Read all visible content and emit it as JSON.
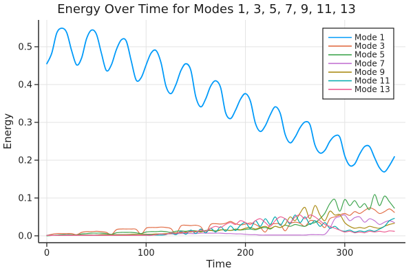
{
  "figure": {
    "background": "#ffffff",
    "grid_color": "#e3e3e3",
    "axis_color": "#2a2a2a",
    "text_color": "#1f1f1f",
    "legend": {
      "background": "#ffffff",
      "border_color": "#1a1a1a"
    }
  },
  "chart_data": {
    "type": "line",
    "title": "Energy Over Time for Modes 1, 3, 5, 7, 9, 11, 13",
    "xlabel": "Time",
    "ylabel": "Energy",
    "xlim": [
      -8.3,
      361.1
    ],
    "ylim": [
      -0.0182,
      0.5709
    ],
    "xticks": [
      0,
      100,
      200,
      300
    ],
    "xtick_labels": [
      "0",
      "100",
      "200",
      "300"
    ],
    "yticks": [
      0.0,
      0.1,
      0.2,
      0.3,
      0.4,
      0.5
    ],
    "ytick_labels": [
      "0.0",
      "0.1",
      "0.2",
      "0.3",
      "0.4",
      "0.5"
    ],
    "grid": true,
    "legend_position": "top-right",
    "x": [
      0,
      5,
      10,
      15,
      20,
      25,
      30,
      35,
      40,
      45,
      50,
      55,
      60,
      65,
      70,
      75,
      80,
      85,
      90,
      95,
      100,
      105,
      110,
      115,
      120,
      125,
      130,
      135,
      140,
      145,
      150,
      155,
      160,
      165,
      170,
      175,
      180,
      185,
      190,
      195,
      200,
      205,
      210,
      215,
      220,
      225,
      230,
      235,
      240,
      245,
      250,
      255,
      260,
      265,
      270,
      275,
      280,
      285,
      290,
      295,
      300,
      305,
      310,
      315,
      320,
      325,
      330,
      335,
      340,
      345,
      350
    ],
    "series": [
      {
        "name": "Mode 1",
        "color": "#009af9",
        "line_width": 1.8,
        "values": [
          0.455,
          0.483,
          0.536,
          0.549,
          0.538,
          0.49,
          0.452,
          0.47,
          0.521,
          0.544,
          0.533,
          0.483,
          0.437,
          0.452,
          0.492,
          0.518,
          0.515,
          0.463,
          0.412,
          0.418,
          0.452,
          0.483,
          0.49,
          0.458,
          0.396,
          0.376,
          0.4,
          0.437,
          0.455,
          0.438,
          0.368,
          0.341,
          0.362,
          0.396,
          0.41,
          0.392,
          0.326,
          0.31,
          0.332,
          0.361,
          0.376,
          0.356,
          0.298,
          0.276,
          0.291,
          0.32,
          0.341,
          0.324,
          0.268,
          0.246,
          0.261,
          0.286,
          0.301,
          0.294,
          0.24,
          0.219,
          0.226,
          0.25,
          0.264,
          0.261,
          0.212,
          0.186,
          0.19,
          0.216,
          0.236,
          0.236,
          0.207,
          0.18,
          0.169,
          0.186,
          0.209
        ]
      },
      {
        "name": "Mode 3",
        "color": "#e26e47",
        "line_width": 1.2,
        "values": [
          0.001,
          0.004,
          0.006,
          0.006,
          0.006,
          0.006,
          0.003,
          0.009,
          0.011,
          0.011,
          0.012,
          0.011,
          0.009,
          0.003,
          0.016,
          0.018,
          0.018,
          0.018,
          0.017,
          0.004,
          0.02,
          0.022,
          0.022,
          0.023,
          0.022,
          0.019,
          0.005,
          0.026,
          0.028,
          0.027,
          0.028,
          0.024,
          0.008,
          0.03,
          0.032,
          0.031,
          0.033,
          0.038,
          0.032,
          0.029,
          0.031,
          0.034,
          0.03,
          0.022,
          0.01,
          0.029,
          0.032,
          0.031,
          0.013,
          0.032,
          0.036,
          0.033,
          0.025,
          0.04,
          0.039,
          0.034,
          0.022,
          0.045,
          0.05,
          0.055,
          0.059,
          0.054,
          0.064,
          0.059,
          0.067,
          0.074,
          0.069,
          0.059,
          0.064,
          0.071,
          0.062
        ]
      },
      {
        "name": "Mode 5",
        "color": "#3da44d",
        "line_width": 1.2,
        "values": [
          0.0,
          0.001,
          0.002,
          0.003,
          0.003,
          0.003,
          0.002,
          0.005,
          0.006,
          0.007,
          0.007,
          0.007,
          0.006,
          0.004,
          0.008,
          0.009,
          0.009,
          0.009,
          0.008,
          0.006,
          0.01,
          0.011,
          0.011,
          0.012,
          0.011,
          0.009,
          0.012,
          0.013,
          0.012,
          0.014,
          0.013,
          0.012,
          0.014,
          0.015,
          0.013,
          0.016,
          0.015,
          0.014,
          0.016,
          0.015,
          0.017,
          0.018,
          0.016,
          0.02,
          0.022,
          0.018,
          0.025,
          0.022,
          0.028,
          0.025,
          0.03,
          0.027,
          0.025,
          0.032,
          0.035,
          0.045,
          0.06,
          0.085,
          0.096,
          0.065,
          0.096,
          0.08,
          0.093,
          0.075,
          0.085,
          0.07,
          0.109,
          0.08,
          0.105,
          0.09,
          0.073
        ]
      },
      {
        "name": "Mode 7",
        "color": "#c271d2",
        "line_width": 1.2,
        "values": [
          0.001,
          0.001,
          0.001,
          0.001,
          0.002,
          0.002,
          0.002,
          0.002,
          0.002,
          0.002,
          0.002,
          0.003,
          0.003,
          0.003,
          0.003,
          0.003,
          0.003,
          0.003,
          0.004,
          0.004,
          0.004,
          0.004,
          0.004,
          0.005,
          0.005,
          0.005,
          0.005,
          0.006,
          0.006,
          0.006,
          0.006,
          0.007,
          0.007,
          0.007,
          0.007,
          0.007,
          0.006,
          0.006,
          0.005,
          0.005,
          0.004,
          0.003,
          0.003,
          0.002,
          0.002,
          0.002,
          0.002,
          0.002,
          0.002,
          0.002,
          0.002,
          0.002,
          0.002,
          0.003,
          0.003,
          0.003,
          0.004,
          0.02,
          0.045,
          0.051,
          0.055,
          0.04,
          0.048,
          0.05,
          0.036,
          0.045,
          0.04,
          0.03,
          0.036,
          0.04,
          0.035
        ]
      },
      {
        "name": "Mode 9",
        "color": "#ac8d18",
        "line_width": 1.2,
        "values": [
          0.001,
          0.001,
          0.001,
          0.001,
          0.001,
          0.002,
          0.002,
          0.002,
          0.002,
          0.002,
          0.002,
          0.003,
          0.003,
          0.003,
          0.003,
          0.003,
          0.003,
          0.004,
          0.004,
          0.004,
          0.004,
          0.004,
          0.005,
          0.005,
          0.006,
          0.006,
          0.008,
          0.008,
          0.01,
          0.01,
          0.012,
          0.01,
          0.013,
          0.014,
          0.012,
          0.015,
          0.016,
          0.014,
          0.018,
          0.016,
          0.02,
          0.022,
          0.018,
          0.022,
          0.025,
          0.02,
          0.025,
          0.022,
          0.03,
          0.05,
          0.04,
          0.06,
          0.075,
          0.045,
          0.08,
          0.055,
          0.04,
          0.065,
          0.055,
          0.056,
          0.035,
          0.025,
          0.02,
          0.022,
          0.02,
          0.025,
          0.022,
          0.02,
          0.025,
          0.03,
          0.033
        ]
      },
      {
        "name": "Mode 11",
        "color": "#00aaae",
        "line_width": 1.2,
        "values": [
          0.001,
          0.001,
          0.001,
          0.001,
          0.001,
          0.001,
          0.001,
          0.001,
          0.001,
          0.001,
          0.001,
          0.001,
          0.001,
          0.001,
          0.001,
          0.001,
          0.001,
          0.001,
          0.001,
          0.001,
          0.002,
          0.002,
          0.002,
          0.002,
          0.003,
          0.008,
          0.003,
          0.012,
          0.004,
          0.015,
          0.006,
          0.018,
          0.008,
          0.02,
          0.01,
          0.024,
          0.012,
          0.026,
          0.014,
          0.028,
          0.035,
          0.02,
          0.04,
          0.025,
          0.045,
          0.03,
          0.05,
          0.028,
          0.045,
          0.032,
          0.055,
          0.035,
          0.05,
          0.03,
          0.04,
          0.025,
          0.035,
          0.02,
          0.025,
          0.015,
          0.012,
          0.015,
          0.01,
          0.013,
          0.011,
          0.015,
          0.012,
          0.018,
          0.025,
          0.04,
          0.046
        ]
      },
      {
        "name": "Mode 13",
        "color": "#ed5d92",
        "line_width": 1.2,
        "values": [
          0.001,
          0.001,
          0.001,
          0.001,
          0.001,
          0.001,
          0.001,
          0.001,
          0.001,
          0.001,
          0.001,
          0.001,
          0.001,
          0.001,
          0.001,
          0.001,
          0.001,
          0.001,
          0.001,
          0.001,
          0.001,
          0.001,
          0.003,
          0.005,
          0.004,
          0.008,
          0.006,
          0.01,
          0.008,
          0.012,
          0.01,
          0.015,
          0.012,
          0.02,
          0.025,
          0.022,
          0.03,
          0.035,
          0.03,
          0.04,
          0.035,
          0.03,
          0.04,
          0.045,
          0.035,
          0.025,
          0.04,
          0.05,
          0.045,
          0.035,
          0.05,
          0.055,
          0.045,
          0.055,
          0.05,
          0.04,
          0.03,
          0.025,
          0.02,
          0.015,
          0.01,
          0.012,
          0.008,
          0.01,
          0.008,
          0.012,
          0.01,
          0.012,
          0.01,
          0.013,
          0.012
        ]
      }
    ]
  }
}
